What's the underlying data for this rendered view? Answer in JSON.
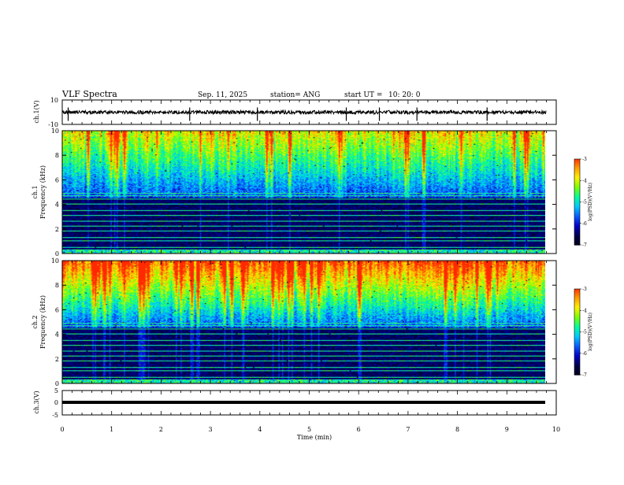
{
  "header": {
    "title": "VLF Spectra",
    "date": "Sep. 11, 2025",
    "station": "station= ANG",
    "start_label": "start  UT  =",
    "start_time": "10: 20: 0"
  },
  "colors": {
    "trace": "#000000",
    "spectrogram_palette": [
      "#000018",
      "#00004a",
      "#0000c8",
      "#0a5cff",
      "#00c8ff",
      "#00ff9a",
      "#7dff00",
      "#fff000",
      "#ff9a00",
      "#ff2800",
      "#ffffff"
    ]
  },
  "chart_data": [
    {
      "type": "line",
      "name": "ch1-waveform",
      "ylabel": "ch.1(V)",
      "ylim": [
        -10,
        10
      ],
      "yticks": [
        "10",
        "-10"
      ],
      "xlim": [
        0,
        10
      ],
      "x_end_min": 9.8,
      "trace_level": 0,
      "spikes_min": [
        0.12,
        2.58,
        3.95,
        5.75,
        6.42,
        7.18,
        8.6
      ]
    },
    {
      "type": "heatmap",
      "name": "ch1-spectrogram",
      "ylabel_top": "ch.1",
      "ylabel": "Frequency  (kHz)",
      "ylim": [
        0,
        10
      ],
      "yticks": [
        "0",
        "2",
        "4",
        "6",
        "8",
        "10"
      ],
      "xlim": [
        0,
        10
      ],
      "x_end_min": 9.8,
      "z_label": "log(PSD)(V²/Hz)",
      "z_range": [
        -7,
        -3
      ],
      "z_ticks": [
        "-3",
        "-4",
        "-5",
        "-6",
        "-7"
      ],
      "intensity_boost": 0.0,
      "interference_lines_khz": [
        0.5,
        1.0,
        1.3,
        1.8,
        2.2,
        2.6,
        3.1,
        3.5,
        4.0,
        4.4,
        4.7,
        4.9
      ]
    },
    {
      "type": "heatmap",
      "name": "ch2-spectrogram",
      "ylabel_top": "ch.2",
      "ylabel": "Frequency  (kHz)",
      "ylim": [
        0,
        10
      ],
      "yticks": [
        "0",
        "2",
        "4",
        "6",
        "8",
        "10"
      ],
      "xlim": [
        0,
        10
      ],
      "x_end_min": 9.8,
      "z_label": "log(PSD)(V²/Hz)",
      "z_range": [
        -7,
        -3
      ],
      "z_ticks": [
        "-3",
        "-4",
        "-5",
        "-6",
        "-7"
      ],
      "intensity_boost": 0.18,
      "interference_lines_khz": [
        0.5,
        1.0,
        1.3,
        1.8,
        2.2,
        2.6,
        3.1,
        3.5,
        4.0,
        4.4,
        4.7,
        4.9
      ]
    },
    {
      "type": "line",
      "name": "ch3-waveform",
      "ylabel": "ch.3(V)",
      "ylim": [
        -5,
        5
      ],
      "yticks": [
        "5",
        "0",
        "-5"
      ],
      "xlim": [
        0,
        10
      ],
      "x_end_min": 9.8,
      "trace_level": -1.5
    }
  ],
  "x_axis": {
    "label": "Time  (min)",
    "ticks": [
      "0",
      "1",
      "2",
      "3",
      "4",
      "5",
      "6",
      "7",
      "8",
      "9",
      "10"
    ]
  }
}
